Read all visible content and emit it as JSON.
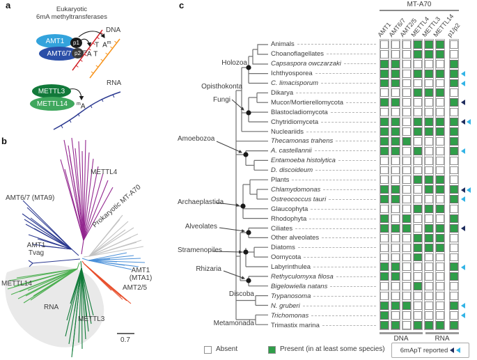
{
  "panels": {
    "a": "a",
    "b": "b",
    "c": "c"
  },
  "panel_a": {
    "title_line1": "Eukaryotic",
    "title_line2": "6mA methyltransferases",
    "dna_complex": {
      "protein1": "AMT1",
      "protein2": "AMT6/7",
      "sub1": "p1",
      "sub2": "p2",
      "target": "DNA"
    },
    "bases": {
      "t_upper": "T",
      "a_upper": "A",
      "m": "m",
      "a_lower": "A",
      "t_lower": "T"
    },
    "rna_complex": {
      "protein1": "METTL3",
      "protein2": "METTL14",
      "target": "RNA",
      "base_a": "A",
      "base_m": "m"
    },
    "colors": {
      "amt1": "#33a3dc",
      "amt67": "#2b4fa8",
      "mettl3": "#12793a",
      "mettl14": "#3fa75d",
      "dna_strand1": "#d2232a",
      "dna_strand2": "#f7941d",
      "rna_strand": "#2b3990"
    }
  },
  "panel_b": {
    "clades": [
      {
        "name": "METTL4",
        "color": "#93278f"
      },
      {
        "name": "AMT6/7 (MTA9)",
        "color": "#2b3990"
      },
      {
        "name": "Prokaryotic MT-A70",
        "color": "#c2c2c2"
      },
      {
        "name": "AMT1 (MTA1)",
        "color": "#4a90d9",
        "line1": "AMT1",
        "line2": "(MTA1)"
      },
      {
        "name": "AMT2/5",
        "color": "#e8502d"
      },
      {
        "name": "METTL3",
        "color": "#0f7a38"
      },
      {
        "name": "METTL14",
        "color": "#4caf50"
      }
    ],
    "tvag_line1": "AMT1",
    "tvag_line2": "Tvag",
    "rna_region_label": "RNA",
    "scale_bar_label": "0.7"
  },
  "panel_c": {
    "header": "MT-A70",
    "columns": [
      "AMT1",
      "AMT6/7",
      "AMT2/5",
      "METTL4",
      "METTL3",
      "METTL14",
      "p1/p2"
    ],
    "groups": [
      "Holozoa",
      "Opisthokonta",
      "Fungi",
      "Amoebozoa",
      "Archaeplastida",
      "Alveolates",
      "Stramenopiles",
      "Rhizaria",
      "Discoba",
      "Metamonada"
    ],
    "rows": [
      {
        "name": "Animals",
        "italic": false,
        "cells": [
          0,
          0,
          0,
          1,
          1,
          1,
          0
        ],
        "arrows": []
      },
      {
        "name": "Choanoflagellates",
        "italic": false,
        "cells": [
          0,
          0,
          0,
          1,
          1,
          1,
          0
        ],
        "arrows": []
      },
      {
        "name": "Capsaspora owczarzaki",
        "italic": true,
        "cells": [
          1,
          1,
          0,
          0,
          0,
          0,
          1
        ],
        "arrows": []
      },
      {
        "name": "Ichthyosporea",
        "italic": false,
        "cells": [
          1,
          1,
          0,
          1,
          1,
          1,
          1
        ],
        "arrows": [
          "cyan"
        ]
      },
      {
        "name": "C. limacisporum",
        "italic": true,
        "cells": [
          1,
          1,
          0,
          0,
          0,
          0,
          1
        ],
        "arrows": [
          "cyan"
        ]
      },
      {
        "name": "Dikarya",
        "italic": false,
        "cells": [
          0,
          0,
          0,
          1,
          1,
          1,
          0
        ],
        "arrows": []
      },
      {
        "name": "Mucor/Mortierellomycota",
        "italic": false,
        "cells": [
          1,
          1,
          0,
          0,
          0,
          0,
          1
        ],
        "arrows": [
          "navy"
        ]
      },
      {
        "name": "Blastocladiomycota",
        "italic": false,
        "cells": [
          0,
          0,
          0,
          0,
          0,
          0,
          0
        ],
        "arrows": []
      },
      {
        "name": "Chytridiomyceta",
        "italic": false,
        "cells": [
          1,
          1,
          0,
          1,
          1,
          1,
          1
        ],
        "arrows": [
          "navy",
          "cyan"
        ]
      },
      {
        "name": "Nucleariids",
        "italic": false,
        "cells": [
          1,
          1,
          0,
          1,
          1,
          1,
          1
        ],
        "arrows": []
      },
      {
        "name": "Thecamonas trahens",
        "italic": true,
        "cells": [
          1,
          1,
          1,
          0,
          0,
          0,
          1
        ],
        "arrows": []
      },
      {
        "name": "A. castellannii",
        "italic": true,
        "cells": [
          1,
          1,
          0,
          1,
          0,
          0,
          1
        ],
        "arrows": [
          "cyan"
        ]
      },
      {
        "name": "Entamoeba histolytica",
        "italic": true,
        "cells": [
          0,
          0,
          0,
          0,
          0,
          0,
          0
        ],
        "arrows": []
      },
      {
        "name": "D. discoideum",
        "italic": true,
        "cells": [
          0,
          0,
          0,
          0,
          0,
          0,
          0
        ],
        "arrows": []
      },
      {
        "name": "Plants",
        "italic": false,
        "cells": [
          0,
          0,
          0,
          1,
          1,
          1,
          0
        ],
        "arrows": []
      },
      {
        "name": "Chlamydomonas",
        "italic": true,
        "cells": [
          1,
          1,
          0,
          0,
          1,
          1,
          1
        ],
        "arrows": [
          "navy",
          "cyan"
        ]
      },
      {
        "name": "Ostreococcus tauri",
        "italic": true,
        "cells": [
          1,
          1,
          0,
          0,
          0,
          0,
          1
        ],
        "arrows": [
          "cyan"
        ]
      },
      {
        "name": "Glaucophyta",
        "italic": false,
        "cells": [
          0,
          0,
          0,
          1,
          1,
          1,
          0
        ],
        "arrows": []
      },
      {
        "name": "Rhodophyta",
        "italic": false,
        "cells": [
          1,
          0,
          1,
          0,
          0,
          0,
          1
        ],
        "arrows": []
      },
      {
        "name": "Ciliates",
        "italic": false,
        "cells": [
          1,
          1,
          1,
          0,
          1,
          1,
          1
        ],
        "arrows": [
          "navy"
        ]
      },
      {
        "name": "Other alveolates",
        "italic": false,
        "cells": [
          0,
          0,
          0,
          1,
          1,
          1,
          0
        ],
        "arrows": []
      },
      {
        "name": "Diatoms",
        "italic": false,
        "cells": [
          0,
          0,
          0,
          1,
          1,
          1,
          0
        ],
        "arrows": []
      },
      {
        "name": "Oomycota",
        "italic": false,
        "cells": [
          0,
          0,
          0,
          1,
          0,
          0,
          0
        ],
        "arrows": []
      },
      {
        "name": "Labyrinthulea",
        "italic": false,
        "cells": [
          1,
          1,
          0,
          0,
          0,
          0,
          1
        ],
        "arrows": [
          "cyan"
        ]
      },
      {
        "name": "Rethyculomyxa filosa",
        "italic": true,
        "cells": [
          1,
          1,
          0,
          0,
          0,
          0,
          1
        ],
        "arrows": []
      },
      {
        "name": "Bigelowiella natans",
        "italic": true,
        "cells": [
          0,
          0,
          0,
          1,
          0,
          0,
          0
        ],
        "arrows": []
      },
      {
        "name": "Trypanosoma",
        "italic": true,
        "cells": [
          0,
          0,
          0,
          0,
          0,
          0,
          0
        ],
        "arrows": []
      },
      {
        "name": "N. gruberi",
        "italic": true,
        "cells": [
          1,
          1,
          1,
          0,
          0,
          0,
          1
        ],
        "arrows": [
          "cyan"
        ]
      },
      {
        "name": "Trichomonas",
        "italic": true,
        "cells": [
          1,
          0,
          0,
          0,
          0,
          0,
          0
        ],
        "arrows": [
          "cyan"
        ]
      },
      {
        "name": "Trimastix marina",
        "italic": false,
        "cells": [
          1,
          1,
          0,
          1,
          1,
          1,
          1
        ],
        "arrows": []
      }
    ],
    "footer": {
      "dna": "DNA",
      "rna": "RNA"
    },
    "legend": {
      "absent": "Absent",
      "present": "Present (in at least some species)",
      "reported": "6mApT reported"
    },
    "colors": {
      "present": "#2f9e49",
      "absent": "#ffffff",
      "cyan_arrow": "#33b4e6",
      "navy_arrow": "#1f2d5e"
    }
  }
}
